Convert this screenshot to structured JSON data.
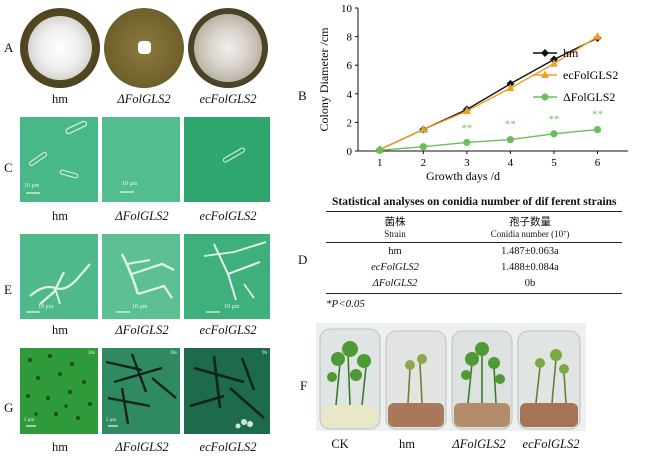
{
  "panels": {
    "A": {
      "letter": "A",
      "labels": [
        "hm",
        "ΔFolGLS2",
        "ecFolGLS2"
      ]
    },
    "B": {
      "letter": "B"
    },
    "C": {
      "letter": "C",
      "labels": [
        "hm",
        "ΔFolGLS2",
        "ecFolGLS2"
      ],
      "scalebars": [
        "10 μm",
        "10 μm",
        ""
      ]
    },
    "D": {
      "letter": "D"
    },
    "E": {
      "letter": "E",
      "labels": [
        "hm",
        "ΔFolGLS2",
        "ecFolGLS2"
      ],
      "scalebars": [
        "10 μm",
        "10 μm",
        "10 μm"
      ]
    },
    "F": {
      "letter": "F",
      "labels": [
        "CK",
        "hm",
        "ΔFolGLS2",
        "ecFolGLS2"
      ]
    },
    "G": {
      "letter": "G",
      "labels": [
        "hm",
        "ΔFolGLS2",
        "ecFolGLS2"
      ],
      "scalebars": [
        "5 μm",
        "5 μm",
        ""
      ],
      "tags": [
        "30s",
        "30s",
        "9h"
      ]
    }
  },
  "chart_data": {
    "type": "line",
    "ylabel": "Colony Diameter /cm",
    "xlabel": "Growth days /d",
    "x": [
      1,
      2,
      3,
      4,
      5,
      6
    ],
    "xlim": [
      0.5,
      6.7
    ],
    "ylim": [
      0,
      10
    ],
    "yticks": [
      0,
      2,
      4,
      6,
      8,
      10
    ],
    "series": [
      {
        "name": "hm",
        "color": "#111111",
        "marker": "diamond",
        "values": [
          0.1,
          1.5,
          2.9,
          4.7,
          6.4,
          7.9
        ]
      },
      {
        "name": "ecFolGLS2",
        "color": "#f0a020",
        "marker": "triangle",
        "values": [
          0.1,
          1.5,
          2.8,
          4.4,
          6.1,
          8.0
        ]
      },
      {
        "name": "ΔFolGLS2",
        "color": "#6cbe5c",
        "marker": "circle",
        "values": [
          0.05,
          0.3,
          0.6,
          0.8,
          1.2,
          1.5
        ]
      }
    ],
    "annotations": [
      "**",
      "**",
      "**",
      "**",
      "**"
    ],
    "annotation_x": [
      2,
      3,
      4,
      5,
      6
    ],
    "annotation_y": [
      1.0,
      1.35,
      1.65,
      2.0,
      2.35
    ],
    "legend": "top-right"
  },
  "table": {
    "title": "Statistical analyses on conidia number of dif ferent strains",
    "header_cn": [
      "菌株",
      "孢子数量"
    ],
    "header_en": [
      "Strain",
      "Conidia number (10⁷)"
    ],
    "rows": [
      {
        "strain": "hm",
        "value": "1.487±0.063a"
      },
      {
        "strain": "ecFolGLS2",
        "value": "1.488±0.084a"
      },
      {
        "strain": "ΔFolGLS2",
        "value": "0b"
      }
    ],
    "note": "*P<0.05"
  },
  "colors": {
    "plate_bg": "#6b5a2a",
    "micro_bg": "#3fb17f"
  }
}
